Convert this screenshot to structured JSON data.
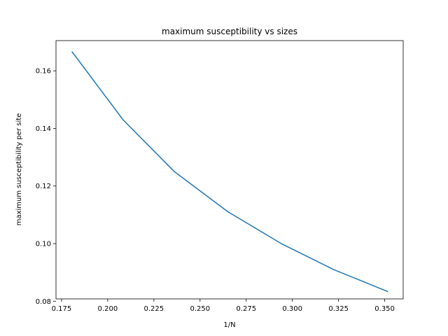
{
  "chart_data": {
    "type": "line",
    "title": "maximum susceptibility vs sizes",
    "xlabel": "1/N",
    "ylabel": "maximum susceptibility per site",
    "xlim": [
      0.172,
      0.36
    ],
    "ylim": [
      0.0808,
      0.1705
    ],
    "x_ticks": [
      0.175,
      0.2,
      0.225,
      0.25,
      0.275,
      0.3,
      0.325,
      0.35
    ],
    "x_tick_labels": [
      "0.175",
      "0.200",
      "0.225",
      "0.250",
      "0.275",
      "0.300",
      "0.325",
      "0.350"
    ],
    "y_ticks": [
      0.08,
      0.1,
      0.12,
      0.14,
      0.16
    ],
    "y_tick_labels": [
      "0.08",
      "0.10",
      "0.12",
      "0.14",
      "0.16"
    ],
    "grid": false,
    "series": [
      {
        "color": "#1f77b4",
        "x": [
          0.1806,
          0.2083,
          0.2361,
          0.265,
          0.294,
          0.3223,
          0.3518
        ],
        "y": [
          0.1667,
          0.143,
          0.125,
          0.1111,
          0.1,
          0.091,
          0.0833
        ]
      }
    ]
  }
}
